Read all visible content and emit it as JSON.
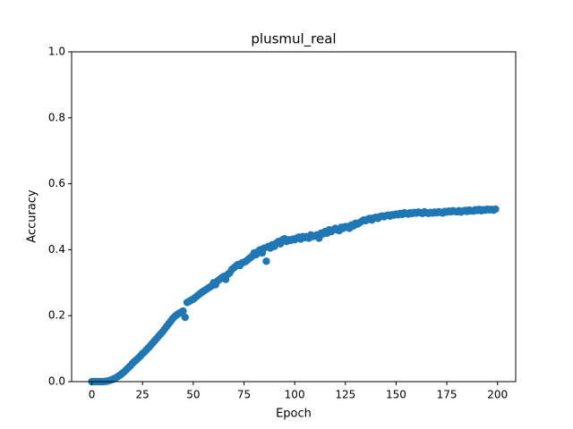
{
  "chart_data": {
    "type": "scatter",
    "title": "plusmul_real",
    "x_label": "Epoch",
    "y_label": "Accuracy",
    "xlim": [
      -9.95,
      208.95
    ],
    "ylim": [
      0,
      1
    ],
    "xticks": [
      0,
      25,
      50,
      75,
      100,
      125,
      150,
      175,
      200
    ],
    "yticks": [
      {
        "value": 0,
        "label": "0.0"
      },
      {
        "value": 0.2,
        "label": "0.2"
      },
      {
        "value": 0.4,
        "label": "0.4"
      },
      {
        "value": 0.6,
        "label": "0.6"
      },
      {
        "value": 0.8,
        "label": "0.8"
      },
      {
        "value": 1,
        "label": "1.0"
      }
    ],
    "color": "#1f77b4",
    "x": [
      0,
      1,
      2,
      3,
      4,
      5,
      6,
      7,
      8,
      9,
      10,
      11,
      12,
      13,
      14,
      15,
      16,
      17,
      18,
      19,
      20,
      21,
      22,
      23,
      24,
      25,
      26,
      27,
      28,
      29,
      30,
      31,
      32,
      33,
      34,
      35,
      36,
      37,
      38,
      39,
      40,
      41,
      42,
      43,
      44,
      45,
      46,
      47,
      48,
      49,
      50,
      51,
      52,
      53,
      54,
      55,
      56,
      57,
      58,
      59,
      60,
      61,
      62,
      63,
      64,
      65,
      66,
      67,
      68,
      69,
      70,
      71,
      72,
      73,
      74,
      75,
      76,
      77,
      78,
      79,
      80,
      81,
      82,
      83,
      84,
      85,
      86,
      87,
      88,
      89,
      90,
      91,
      92,
      93,
      94,
      95,
      96,
      97,
      98,
      99,
      100,
      101,
      102,
      103,
      104,
      105,
      106,
      107,
      108,
      109,
      110,
      111,
      112,
      113,
      114,
      115,
      116,
      117,
      118,
      119,
      120,
      121,
      122,
      123,
      124,
      125,
      126,
      127,
      128,
      129,
      130,
      131,
      132,
      133,
      134,
      135,
      136,
      137,
      138,
      139,
      140,
      141,
      142,
      143,
      144,
      145,
      146,
      147,
      148,
      149,
      150,
      151,
      152,
      153,
      154,
      155,
      156,
      157,
      158,
      159,
      160,
      161,
      162,
      163,
      164,
      165,
      166,
      167,
      168,
      169,
      170,
      171,
      172,
      173,
      174,
      175,
      176,
      177,
      178,
      179,
      180,
      181,
      182,
      183,
      184,
      185,
      186,
      187,
      188,
      189,
      190,
      191,
      192,
      193,
      194,
      195,
      196,
      197,
      198,
      199
    ],
    "values": [
      0,
      0,
      0,
      0,
      0,
      0,
      0,
      0.001,
      0.002,
      0.004,
      0.006,
      0.009,
      0.012,
      0.016,
      0.02,
      0.025,
      0.03,
      0.036,
      0.042,
      0.048,
      0.055,
      0.061,
      0.066,
      0.072,
      0.078,
      0.085,
      0.09,
      0.097,
      0.103,
      0.11,
      0.117,
      0.124,
      0.131,
      0.138,
      0.145,
      0.152,
      0.16,
      0.168,
      0.176,
      0.184,
      0.192,
      0.198,
      0.203,
      0.207,
      0.21,
      0.214,
      0.195,
      0.24,
      0.243,
      0.247,
      0.25,
      0.255,
      0.26,
      0.265,
      0.27,
      0.274,
      0.278,
      0.282,
      0.286,
      0.29,
      0.3,
      0.294,
      0.305,
      0.31,
      0.315,
      0.319,
      0.31,
      0.325,
      0.33,
      0.34,
      0.345,
      0.35,
      0.355,
      0.352,
      0.36,
      0.362,
      0.365,
      0.37,
      0.375,
      0.38,
      0.39,
      0.385,
      0.395,
      0.4,
      0.39,
      0.405,
      0.365,
      0.41,
      0.405,
      0.415,
      0.41,
      0.42,
      0.425,
      0.418,
      0.43,
      0.433,
      0.425,
      0.43,
      0.428,
      0.432,
      0.43,
      0.435,
      0.438,
      0.432,
      0.44,
      0.437,
      0.44,
      0.435,
      0.445,
      0.44,
      0.442,
      0.445,
      0.435,
      0.45,
      0.448,
      0.455,
      0.45,
      0.46,
      0.455,
      0.46,
      0.465,
      0.46,
      0.458,
      0.468,
      0.465,
      0.47,
      0.47,
      0.465,
      0.475,
      0.472,
      0.48,
      0.478,
      0.482,
      0.486,
      0.49,
      0.488,
      0.492,
      0.495,
      0.49,
      0.496,
      0.498,
      0.495,
      0.5,
      0.502,
      0.5,
      0.503,
      0.505,
      0.502,
      0.506,
      0.505,
      0.508,
      0.506,
      0.51,
      0.507,
      0.512,
      0.51,
      0.508,
      0.512,
      0.51,
      0.513,
      0.511,
      0.514,
      0.512,
      0.51,
      0.515,
      0.512,
      0.51,
      0.513,
      0.511,
      0.514,
      0.512,
      0.515,
      0.513,
      0.511,
      0.516,
      0.514,
      0.517,
      0.515,
      0.518,
      0.516,
      0.515,
      0.518,
      0.514,
      0.517,
      0.519,
      0.516,
      0.52,
      0.518,
      0.517,
      0.521,
      0.519,
      0.522,
      0.518,
      0.521,
      0.52,
      0.523,
      0.521,
      0.522,
      0.52,
      0.523
    ]
  }
}
